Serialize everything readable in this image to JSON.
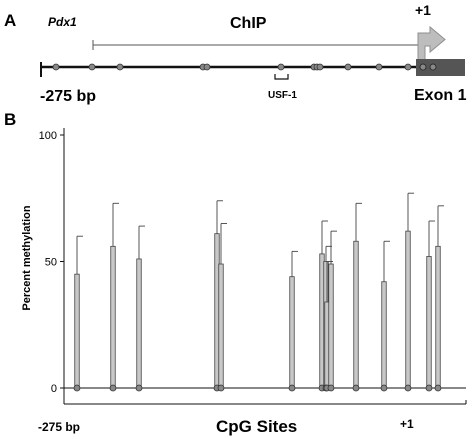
{
  "panel_a": {
    "label": "A",
    "gene": "Pdx1",
    "chip_label": "ChIP",
    "tss_label": "+1",
    "start_label": "-275 bp",
    "usf_label": "USF-1",
    "exon_label": "Exon 1",
    "colors": {
      "exon": "#555555",
      "arrow": "#bbbbbb",
      "cpg": "#888888"
    },
    "cpg_count_line": 12,
    "cpg_count_exon": 2
  },
  "panel_b": {
    "label": "B"
  },
  "chart_data": {
    "type": "bar",
    "ylabel": "Percent methylation",
    "xlabel": "CpG Sites",
    "x_start_label": "-275 bp",
    "x_end_label": "+1",
    "ylim": [
      0,
      100
    ],
    "yticks": [
      0,
      50,
      100
    ],
    "grid": false,
    "error_bars": true,
    "bar_color": "#c8c8c8",
    "sites": [
      {
        "value": 45,
        "error": 15
      },
      {
        "value": 56,
        "error": 17
      },
      {
        "value": 51,
        "error": 13
      },
      {
        "value": 61,
        "error": 13
      },
      {
        "value": 49,
        "error": 16
      },
      {
        "value": 44,
        "error": 10
      },
      {
        "value": 53,
        "error": 13
      },
      {
        "value": 50,
        "error": 6
      },
      {
        "value": 34,
        "error": 16
      },
      {
        "value": 49,
        "error": 13
      },
      {
        "value": 58,
        "error": 15
      },
      {
        "value": 42,
        "error": 16
      },
      {
        "value": 62,
        "error": 15
      },
      {
        "value": 52,
        "error": 14
      },
      {
        "value": 56,
        "error": 16
      }
    ]
  }
}
